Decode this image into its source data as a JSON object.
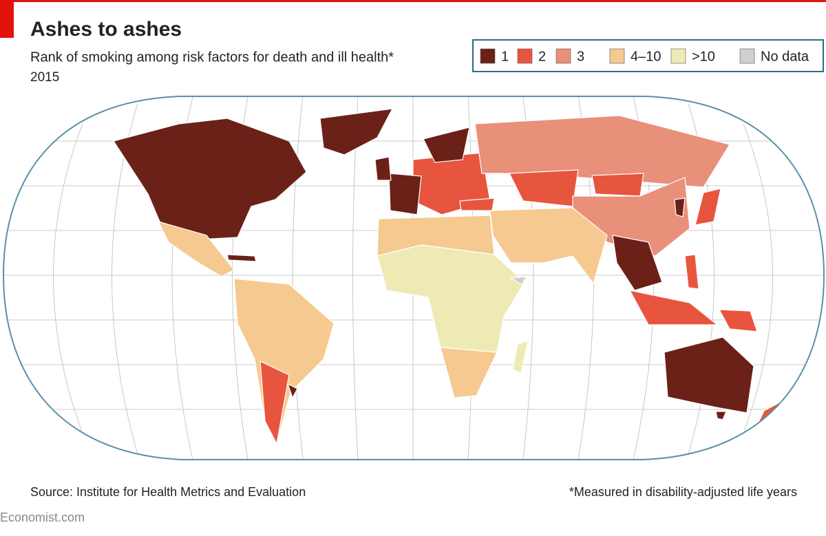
{
  "header": {
    "title": "Ashes to ashes",
    "subtitle": "Rank of smoking among risk factors for death and ill health*",
    "year": "2015"
  },
  "legend": [
    {
      "label": "1",
      "color": "#6b2118"
    },
    {
      "label": "2",
      "color": "#e8553f"
    },
    {
      "label": "3",
      "color": "#e8907a"
    },
    {
      "label": "4–10",
      "color": "#f5c98f"
    },
    {
      "label": ">10",
      "color": "#eeeab4"
    },
    {
      "label": "No data",
      "color": "#d0d0d0"
    }
  ],
  "footer": {
    "source": "Source: Institute for Health Metrics and Evaluation",
    "note": "*Measured in disability-adjusted life years",
    "brand": "Economist.com"
  }
}
